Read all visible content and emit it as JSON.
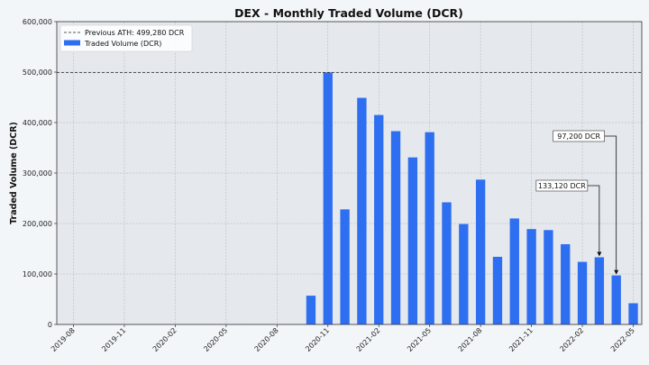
{
  "chart_data": {
    "type": "bar",
    "title": "DEX - Monthly Traded Volume (DCR)",
    "xlabel": "",
    "ylabel": "Traded Volume (DCR)",
    "ylim": [
      0,
      600000
    ],
    "yticks": [
      0,
      100000,
      200000,
      300000,
      400000,
      500000,
      600000
    ],
    "ytick_labels": [
      "0",
      "100,000",
      "200,000",
      "300,000",
      "400,000",
      "500,000",
      "600,000"
    ],
    "xticks": [
      "2019-08",
      "2019-11",
      "2020-02",
      "2020-05",
      "2020-08",
      "2020-11",
      "2021-02",
      "2021-05",
      "2021-08",
      "2021-11",
      "2022-02",
      "2022-05"
    ],
    "x_start": "2019-08",
    "x_end": "2022-05",
    "grid": true,
    "legend_position": "top-left",
    "series": [
      {
        "name": "Traded Volume (DCR)",
        "color": "#2e6ff2",
        "points": [
          {
            "x": "2020-10",
            "y": 57000
          },
          {
            "x": "2020-11",
            "y": 499280
          },
          {
            "x": "2020-12",
            "y": 228000
          },
          {
            "x": "2021-01",
            "y": 449000
          },
          {
            "x": "2021-02",
            "y": 415000
          },
          {
            "x": "2021-03",
            "y": 383000
          },
          {
            "x": "2021-04",
            "y": 331000
          },
          {
            "x": "2021-05",
            "y": 381000
          },
          {
            "x": "2021-06",
            "y": 242000
          },
          {
            "x": "2021-07",
            "y": 199000
          },
          {
            "x": "2021-08",
            "y": 287000
          },
          {
            "x": "2021-09",
            "y": 134000
          },
          {
            "x": "2021-10",
            "y": 210000
          },
          {
            "x": "2021-11",
            "y": 189000
          },
          {
            "x": "2021-12",
            "y": 187000
          },
          {
            "x": "2022-01",
            "y": 159000
          },
          {
            "x": "2022-02",
            "y": 124000
          },
          {
            "x": "2022-03",
            "y": 133120
          },
          {
            "x": "2022-04",
            "y": 97200
          },
          {
            "x": "2022-05",
            "y": 42000
          }
        ]
      }
    ],
    "reference_line": {
      "name": "Previous ATH: 499,280 DCR",
      "y": 499280,
      "color": "#222222"
    },
    "annotations": [
      {
        "text": "133,120 DCR",
        "x": "2022-03",
        "y": 133120
      },
      {
        "text": "97,200 DCR",
        "x": "2022-04",
        "y": 97200
      }
    ]
  }
}
